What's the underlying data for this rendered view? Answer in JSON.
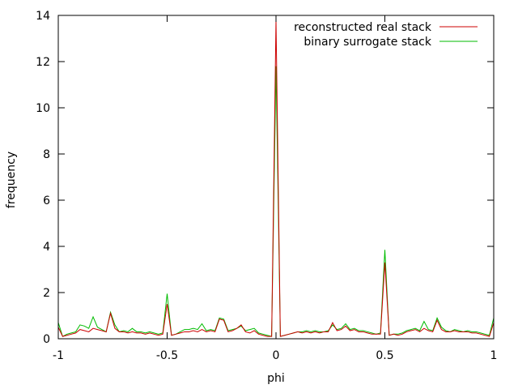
{
  "chart_data": {
    "type": "line",
    "xlabel": "phi",
    "ylabel": "frequency",
    "xlim": [
      -1,
      1
    ],
    "ylim": [
      0,
      14
    ],
    "grid": false,
    "legend_position": "top-right",
    "x_ticks": [
      -1,
      -0.5,
      0,
      0.5,
      1
    ],
    "x_tick_labels": [
      "-1",
      "-0.5",
      "0",
      "0.5",
      "1"
    ],
    "y_ticks": [
      0,
      2,
      4,
      6,
      8,
      10,
      12,
      14
    ],
    "y_tick_labels": [
      "0",
      "2",
      "4",
      "6",
      "8",
      "10",
      "12",
      "14"
    ],
    "series": [
      {
        "name": "reconstructed real stack",
        "color": "#cc0000",
        "dash": "",
        "points": [
          [
            -1,
            0.5
          ],
          [
            -0.98,
            0.1
          ],
          [
            -0.96,
            0.15
          ],
          [
            -0.94,
            0.2
          ],
          [
            -0.92,
            0.25
          ],
          [
            -0.9,
            0.4
          ],
          [
            -0.88,
            0.35
          ],
          [
            -0.86,
            0.3
          ],
          [
            -0.84,
            0.45
          ],
          [
            -0.82,
            0.4
          ],
          [
            -0.8,
            0.35
          ],
          [
            -0.78,
            0.3
          ],
          [
            -0.76,
            1.1
          ],
          [
            -0.74,
            0.45
          ],
          [
            -0.72,
            0.3
          ],
          [
            -0.7,
            0.3
          ],
          [
            -0.68,
            0.25
          ],
          [
            -0.66,
            0.3
          ],
          [
            -0.64,
            0.25
          ],
          [
            -0.62,
            0.25
          ],
          [
            -0.6,
            0.2
          ],
          [
            -0.58,
            0.25
          ],
          [
            -0.56,
            0.2
          ],
          [
            -0.54,
            0.15
          ],
          [
            -0.52,
            0.2
          ],
          [
            -0.5,
            1.5
          ],
          [
            -0.48,
            0.15
          ],
          [
            -0.46,
            0.2
          ],
          [
            -0.44,
            0.25
          ],
          [
            -0.42,
            0.3
          ],
          [
            -0.4,
            0.3
          ],
          [
            -0.38,
            0.35
          ],
          [
            -0.36,
            0.3
          ],
          [
            -0.34,
            0.4
          ],
          [
            -0.32,
            0.3
          ],
          [
            -0.3,
            0.35
          ],
          [
            -0.28,
            0.3
          ],
          [
            -0.26,
            0.85
          ],
          [
            -0.24,
            0.8
          ],
          [
            -0.22,
            0.3
          ],
          [
            -0.2,
            0.35
          ],
          [
            -0.18,
            0.45
          ],
          [
            -0.16,
            0.6
          ],
          [
            -0.14,
            0.3
          ],
          [
            -0.12,
            0.25
          ],
          [
            -0.1,
            0.35
          ],
          [
            -0.08,
            0.2
          ],
          [
            -0.06,
            0.15
          ],
          [
            -0.04,
            0.1
          ],
          [
            -0.02,
            0.1
          ],
          [
            0,
            13.8
          ],
          [
            0.02,
            0.1
          ],
          [
            0.04,
            0.15
          ],
          [
            0.06,
            0.2
          ],
          [
            0.08,
            0.25
          ],
          [
            0.1,
            0.3
          ],
          [
            0.12,
            0.25
          ],
          [
            0.14,
            0.3
          ],
          [
            0.16,
            0.25
          ],
          [
            0.18,
            0.3
          ],
          [
            0.2,
            0.25
          ],
          [
            0.22,
            0.3
          ],
          [
            0.24,
            0.3
          ],
          [
            0.26,
            0.7
          ],
          [
            0.28,
            0.35
          ],
          [
            0.3,
            0.4
          ],
          [
            0.32,
            0.55
          ],
          [
            0.34,
            0.35
          ],
          [
            0.36,
            0.4
          ],
          [
            0.38,
            0.3
          ],
          [
            0.4,
            0.3
          ],
          [
            0.42,
            0.25
          ],
          [
            0.44,
            0.2
          ],
          [
            0.46,
            0.2
          ],
          [
            0.48,
            0.2
          ],
          [
            0.5,
            3.3
          ],
          [
            0.52,
            0.15
          ],
          [
            0.54,
            0.2
          ],
          [
            0.56,
            0.15
          ],
          [
            0.58,
            0.2
          ],
          [
            0.6,
            0.3
          ],
          [
            0.62,
            0.35
          ],
          [
            0.64,
            0.4
          ],
          [
            0.66,
            0.3
          ],
          [
            0.68,
            0.45
          ],
          [
            0.7,
            0.35
          ],
          [
            0.72,
            0.3
          ],
          [
            0.74,
            0.8
          ],
          [
            0.76,
            0.4
          ],
          [
            0.78,
            0.3
          ],
          [
            0.8,
            0.3
          ],
          [
            0.82,
            0.35
          ],
          [
            0.84,
            0.3
          ],
          [
            0.86,
            0.3
          ],
          [
            0.88,
            0.3
          ],
          [
            0.9,
            0.25
          ],
          [
            0.92,
            0.25
          ],
          [
            0.94,
            0.2
          ],
          [
            0.96,
            0.15
          ],
          [
            0.98,
            0.1
          ],
          [
            1,
            0.7
          ]
        ]
      },
      {
        "name": "binary surrogate stack",
        "color": "#00bb00",
        "dash": "",
        "points": [
          [
            -1,
            0.7
          ],
          [
            -0.98,
            0.1
          ],
          [
            -0.96,
            0.2
          ],
          [
            -0.94,
            0.25
          ],
          [
            -0.92,
            0.3
          ],
          [
            -0.9,
            0.6
          ],
          [
            -0.88,
            0.55
          ],
          [
            -0.86,
            0.45
          ],
          [
            -0.84,
            0.95
          ],
          [
            -0.82,
            0.5
          ],
          [
            -0.8,
            0.4
          ],
          [
            -0.78,
            0.3
          ],
          [
            -0.76,
            1.15
          ],
          [
            -0.74,
            0.6
          ],
          [
            -0.72,
            0.3
          ],
          [
            -0.7,
            0.35
          ],
          [
            -0.68,
            0.3
          ],
          [
            -0.66,
            0.45
          ],
          [
            -0.64,
            0.3
          ],
          [
            -0.62,
            0.3
          ],
          [
            -0.6,
            0.25
          ],
          [
            -0.58,
            0.3
          ],
          [
            -0.56,
            0.25
          ],
          [
            -0.54,
            0.2
          ],
          [
            -0.52,
            0.25
          ],
          [
            -0.5,
            1.95
          ],
          [
            -0.48,
            0.15
          ],
          [
            -0.46,
            0.2
          ],
          [
            -0.44,
            0.3
          ],
          [
            -0.42,
            0.4
          ],
          [
            -0.4,
            0.4
          ],
          [
            -0.38,
            0.45
          ],
          [
            -0.36,
            0.4
          ],
          [
            -0.34,
            0.65
          ],
          [
            -0.32,
            0.35
          ],
          [
            -0.3,
            0.4
          ],
          [
            -0.28,
            0.35
          ],
          [
            -0.26,
            0.9
          ],
          [
            -0.24,
            0.85
          ],
          [
            -0.22,
            0.35
          ],
          [
            -0.2,
            0.4
          ],
          [
            -0.18,
            0.45
          ],
          [
            -0.16,
            0.55
          ],
          [
            -0.14,
            0.35
          ],
          [
            -0.12,
            0.4
          ],
          [
            -0.1,
            0.45
          ],
          [
            -0.08,
            0.25
          ],
          [
            -0.06,
            0.2
          ],
          [
            -0.04,
            0.15
          ],
          [
            -0.02,
            0.1
          ],
          [
            0,
            11.8
          ],
          [
            0.02,
            0.1
          ],
          [
            0.04,
            0.15
          ],
          [
            0.06,
            0.2
          ],
          [
            0.08,
            0.25
          ],
          [
            0.1,
            0.3
          ],
          [
            0.12,
            0.3
          ],
          [
            0.14,
            0.35
          ],
          [
            0.16,
            0.3
          ],
          [
            0.18,
            0.35
          ],
          [
            0.2,
            0.3
          ],
          [
            0.22,
            0.3
          ],
          [
            0.24,
            0.35
          ],
          [
            0.26,
            0.6
          ],
          [
            0.28,
            0.4
          ],
          [
            0.3,
            0.45
          ],
          [
            0.32,
            0.65
          ],
          [
            0.34,
            0.4
          ],
          [
            0.36,
            0.45
          ],
          [
            0.38,
            0.35
          ],
          [
            0.4,
            0.35
          ],
          [
            0.42,
            0.3
          ],
          [
            0.44,
            0.25
          ],
          [
            0.46,
            0.2
          ],
          [
            0.48,
            0.25
          ],
          [
            0.5,
            3.85
          ],
          [
            0.52,
            0.15
          ],
          [
            0.54,
            0.2
          ],
          [
            0.56,
            0.2
          ],
          [
            0.58,
            0.25
          ],
          [
            0.6,
            0.35
          ],
          [
            0.62,
            0.4
          ],
          [
            0.64,
            0.45
          ],
          [
            0.66,
            0.35
          ],
          [
            0.68,
            0.75
          ],
          [
            0.7,
            0.4
          ],
          [
            0.72,
            0.35
          ],
          [
            0.74,
            0.9
          ],
          [
            0.76,
            0.5
          ],
          [
            0.78,
            0.35
          ],
          [
            0.8,
            0.3
          ],
          [
            0.82,
            0.4
          ],
          [
            0.84,
            0.35
          ],
          [
            0.86,
            0.3
          ],
          [
            0.88,
            0.35
          ],
          [
            0.9,
            0.3
          ],
          [
            0.92,
            0.3
          ],
          [
            0.94,
            0.25
          ],
          [
            0.96,
            0.2
          ],
          [
            0.98,
            0.15
          ],
          [
            1,
            0.9
          ]
        ]
      }
    ]
  }
}
